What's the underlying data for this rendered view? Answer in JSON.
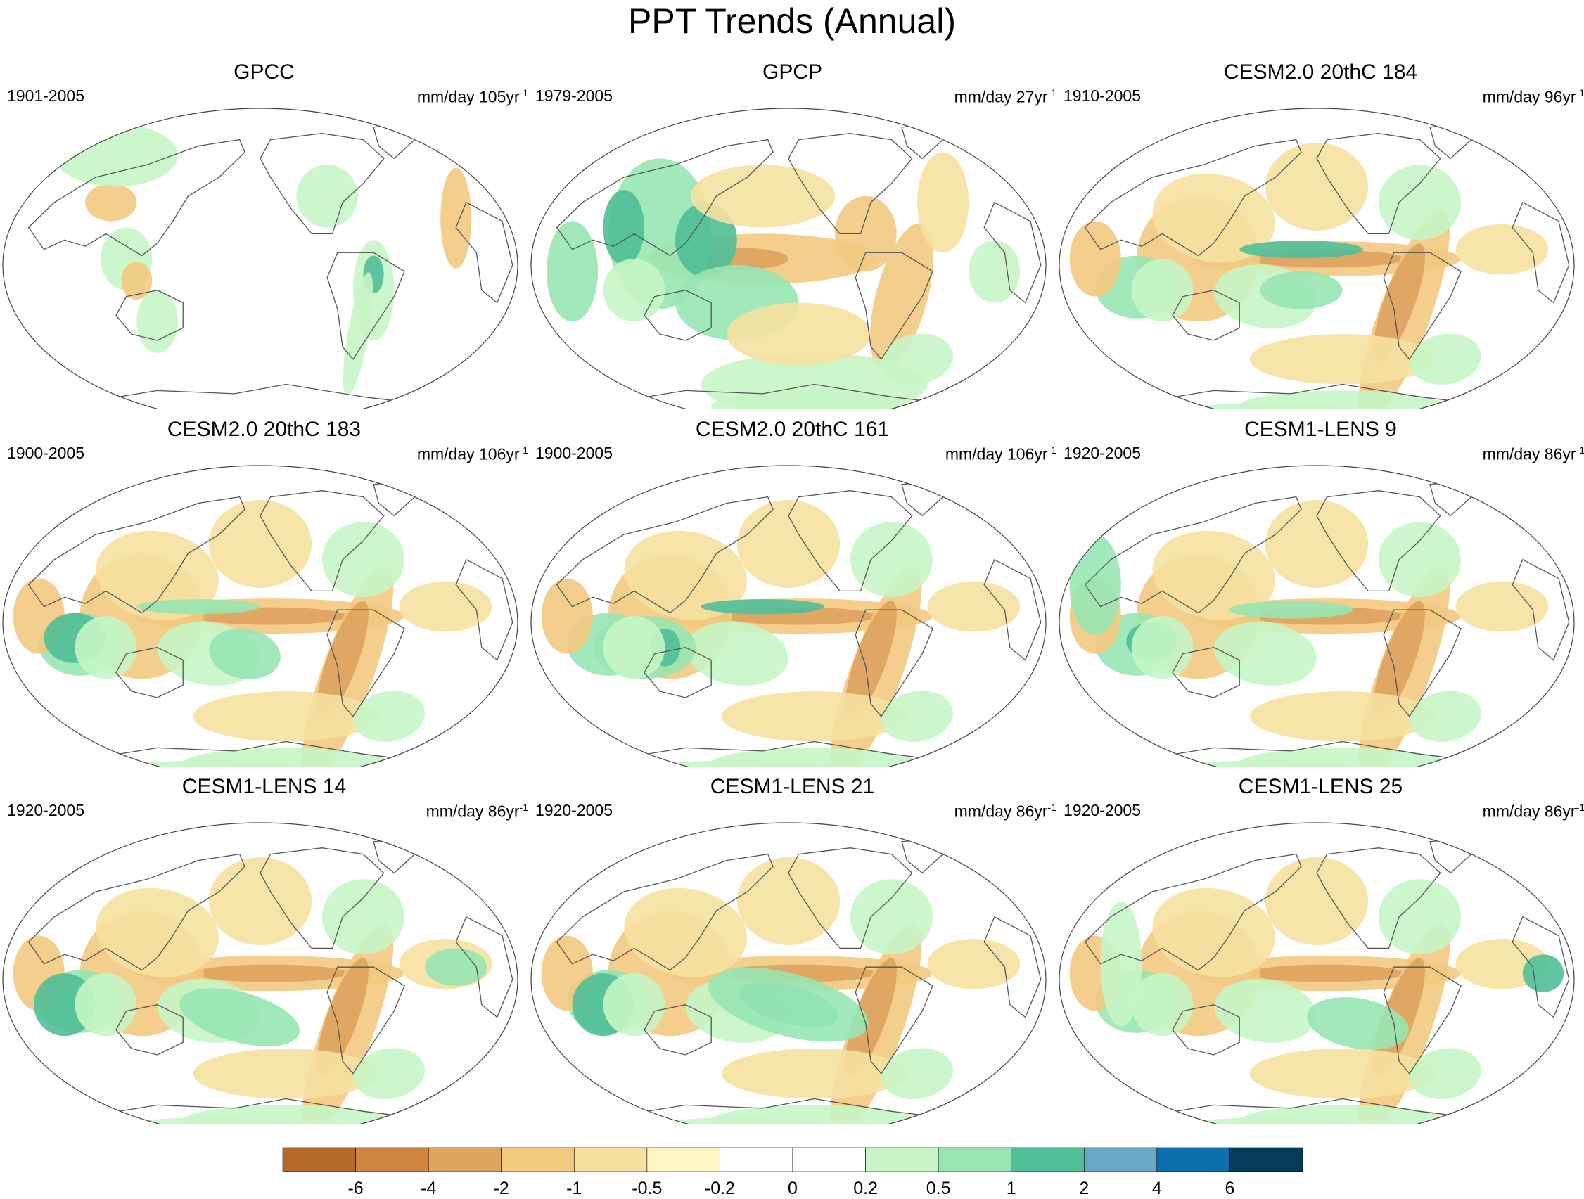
{
  "title": "PPT Trends (Annual)",
  "panels": [
    {
      "title": "GPCC",
      "period": "1901-2005",
      "units": "mm/day 105yr",
      "exp": "-1"
    },
    {
      "title": "GPCP",
      "period": "1979-2005",
      "units": "mm/day 27yr",
      "exp": "-1"
    },
    {
      "title": "CESM2.0 20thC 184",
      "period": "1910-2005",
      "units": "mm/day 96yr",
      "exp": "-1"
    },
    {
      "title": "CESM2.0 20thC 183",
      "period": "1900-2005",
      "units": "mm/day 106yr",
      "exp": "-1"
    },
    {
      "title": "CESM2.0 20thC 161",
      "period": "1900-2005",
      "units": "mm/day 106yr",
      "exp": "-1"
    },
    {
      "title": "CESM1-LENS 9",
      "period": "1920-2005",
      "units": "mm/day 86yr",
      "exp": "-1"
    },
    {
      "title": "CESM1-LENS 14",
      "period": "1920-2005",
      "units": "mm/day 86yr",
      "exp": "-1"
    },
    {
      "title": "CESM1-LENS 21",
      "period": "1920-2005",
      "units": "mm/day 86yr",
      "exp": "-1"
    },
    {
      "title": "CESM1-LENS 25",
      "period": "1920-2005",
      "units": "mm/day 86yr",
      "exp": "-1"
    }
  ],
  "colorbar": {
    "labels": [
      "-6",
      "-4",
      "-2",
      "-1",
      "-0.5",
      "-0.2",
      "0",
      "0.2",
      "0.5",
      "1",
      "2",
      "4",
      "6"
    ],
    "colors": [
      "#b5692a",
      "#cd8540",
      "#dea35f",
      "#f2c97f",
      "#f6e1a0",
      "#fdf5c4",
      "#ffffff",
      "#ffffff",
      "#c7f5c5",
      "#97e6b2",
      "#50bf98",
      "#6aa8c8",
      "#0d6fae",
      "#063b5a"
    ]
  },
  "colors": {
    "brown_dark": "#cd8540",
    "brown_mid": "#dea35f",
    "tan": "#f2c97f",
    "tan_light": "#f6e1a0",
    "green_light": "#c7f5c5",
    "green_mid": "#97e6b2",
    "green_dark": "#50bf98",
    "coastline": "#555555"
  }
}
